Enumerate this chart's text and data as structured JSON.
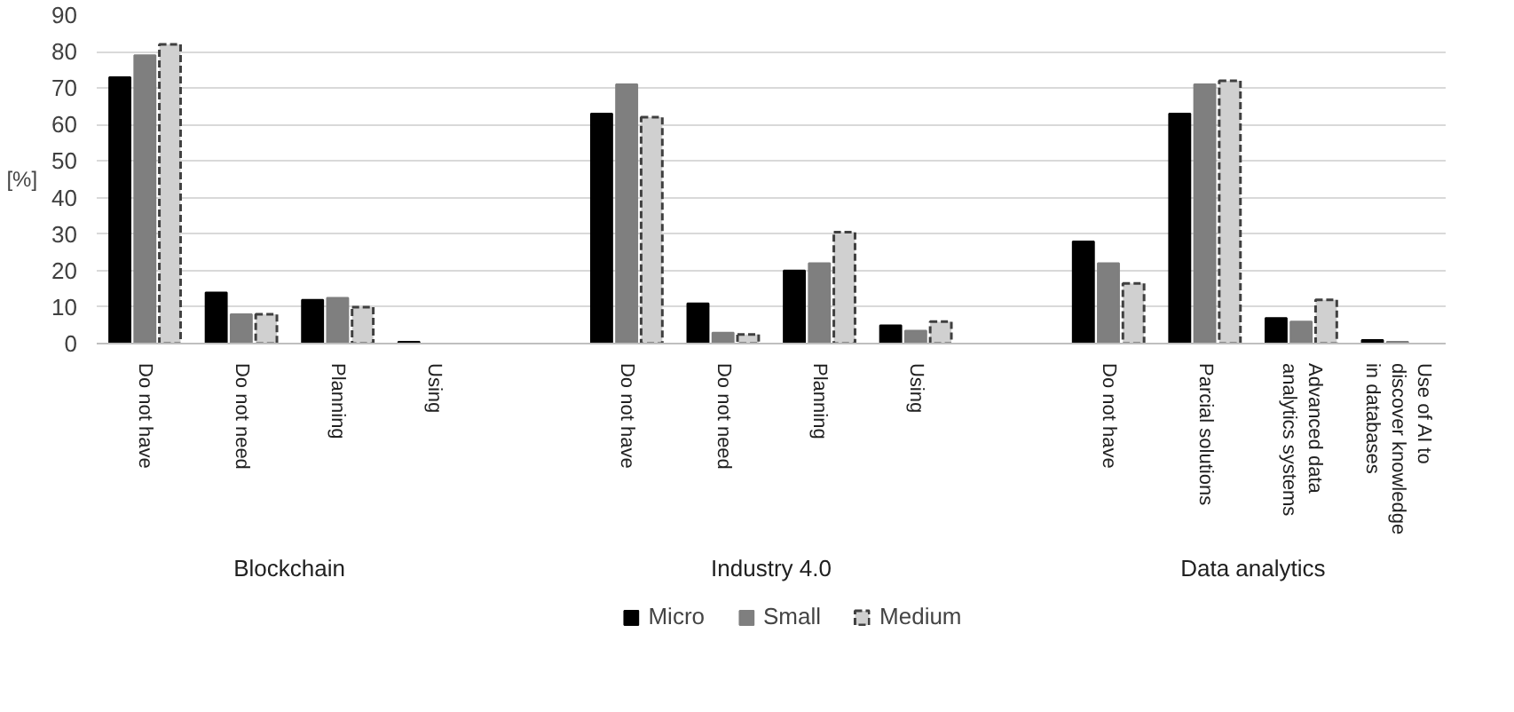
{
  "chart_data": {
    "type": "bar",
    "ylabel": "[%]",
    "categories": [
      "Do not have",
      "Do not need",
      "Planning",
      "Using",
      null,
      "Do not have",
      "Do not need",
      "Planning",
      "Using",
      null,
      "Do not have",
      "Parcial solutions",
      "Advanced data analytics systems",
      "Use of AI to discover knowledge in databases"
    ],
    "series": [
      {
        "name": "Micro",
        "color": "#000000",
        "values": [
          73,
          14,
          12,
          0.5,
          null,
          63,
          11,
          20,
          5,
          null,
          28,
          63,
          7,
          1
        ]
      },
      {
        "name": "Small",
        "color": "#7f7f7f",
        "values": [
          79,
          8,
          12.5,
          0,
          null,
          71,
          3,
          22,
          3.5,
          null,
          22,
          71,
          6,
          0.5
        ]
      },
      {
        "name": "Medium",
        "color": "#d0d0d0",
        "values": [
          82,
          8,
          10,
          0,
          null,
          62,
          2.5,
          30.5,
          6,
          null,
          16.5,
          72,
          12,
          0
        ]
      }
    ],
    "annotations": [
      "Blockchain",
      "Industry 4.0",
      "Data analytics"
    ],
    "ylim": [
      0,
      90
    ],
    "yticks": [
      0,
      10,
      20,
      30,
      40,
      50,
      60,
      70,
      80,
      90
    ],
    "grid": "y",
    "legend": "bottom"
  }
}
